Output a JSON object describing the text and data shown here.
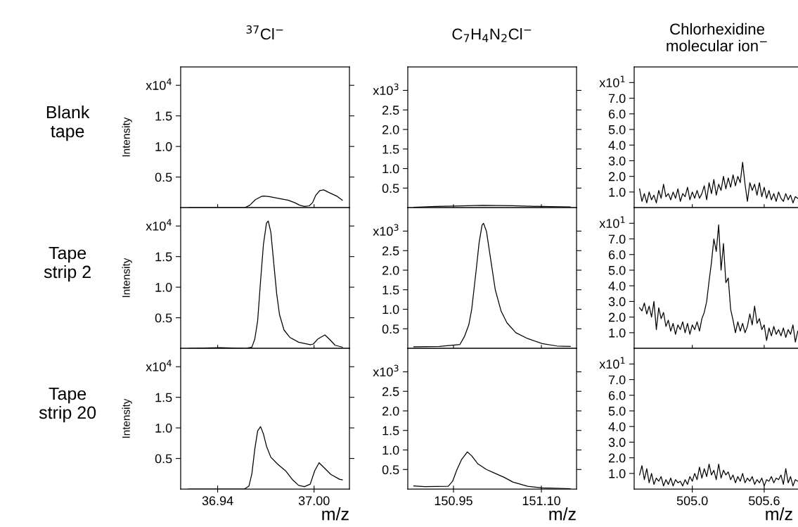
{
  "chart_data": [
    {
      "type": "line",
      "title": "$^{37}$Cl$^{−}$",
      "ylabel": "Intensity",
      "annotations": [
        "Blank\ntape"
      ],
      "tick_labels": "y",
      "x": [
        36.9218,
        36.95,
        36.957,
        36.96,
        36.9635,
        36.967,
        36.9685,
        36.972,
        36.976,
        36.98,
        36.984,
        36.988,
        36.991,
        36.994,
        36.997,
        36.999,
        37.001,
        37.0036,
        37.006,
        37.009,
        37.014,
        37.0176
      ],
      "series": [
        {
          "color": "#000000",
          "values": [
            0,
            0,
            0,
            0.04,
            0.13,
            0.18,
            0.19,
            0.18,
            0.16,
            0.14,
            0.12,
            0.08,
            0.04,
            0.02,
            0.03,
            0.08,
            0.2,
            0.28,
            0.29,
            0.25,
            0.19,
            0.12
          ]
        }
      ],
      "xlim": [
        36.917,
        37.022
      ],
      "ylim": [
        0,
        2.3
      ],
      "xticks": [
        {
          "value": 36.94,
          "label": null
        },
        {
          "value": 37.0,
          "label": null
        }
      ],
      "yticks": [
        0.5,
        {
          "value": 1,
          "label": "1.0"
        },
        1.5,
        {
          "value": 2,
          "label": "x10$^{4}$"
        }
      ]
    },
    {
      "type": "line",
      "title": "C$_{7}$H$_{4}$N$_{2}$Cl$^{−}$",
      "tick_labels": "y",
      "x": [
        150.8822,
        150.92,
        150.95,
        151.0,
        151.05,
        151.1,
        151.1493
      ],
      "series": [
        {
          "color": "#000000",
          "values": [
            0.01,
            0.03,
            0.04,
            0.06,
            0.05,
            0.03,
            0.02
          ]
        }
      ],
      "xlim": [
        150.872,
        151.16
      ],
      "ylim": [
        0,
        3.6
      ],
      "xticks": [
        {
          "value": 150.95,
          "label": null
        },
        {
          "value": 151.1,
          "label": null
        }
      ],
      "yticks": [
        0.5,
        {
          "value": 1,
          "label": "1.0"
        },
        1.5,
        {
          "value": 2,
          "label": "2.0"
        },
        2.5,
        {
          "value": 3,
          "label": "x10$^{3}$"
        }
      ]
    },
    {
      "type": "line",
      "title": "Chlorhexidine\nmolecular ion$^{−}$",
      "tick_labels": "y",
      "x": [
        504.56,
        504.58,
        504.6,
        504.62,
        504.64,
        504.66,
        504.68,
        504.7,
        504.72,
        504.74,
        504.76,
        504.78,
        504.8,
        504.82,
        504.84,
        504.86,
        504.88,
        504.9,
        504.92,
        504.94,
        504.96,
        504.98,
        505.0,
        505.02,
        505.04,
        505.06,
        505.08,
        505.1,
        505.12,
        505.14,
        505.16,
        505.18,
        505.2,
        505.22,
        505.24,
        505.26,
        505.28,
        505.3,
        505.32,
        505.34,
        505.36,
        505.38,
        505.4,
        505.42,
        505.44,
        505.46,
        505.48,
        505.5,
        505.52,
        505.54,
        505.56,
        505.58,
        505.6,
        505.62,
        505.64,
        505.66,
        505.68,
        505.7,
        505.72,
        505.74,
        505.76,
        505.78,
        505.8,
        505.82,
        505.84,
        505.86,
        505.88
      ],
      "series": [
        {
          "color": "#000000",
          "values": [
            1.2,
            0.4,
            0.9,
            0.3,
            1.0,
            0.5,
            0.8,
            0.3,
            1.1,
            0.6,
            1.5,
            0.7,
            0.9,
            0.5,
            1.0,
            0.6,
            1.2,
            0.4,
            0.9,
            0.7,
            1.3,
            0.5,
            1.0,
            0.6,
            1.1,
            0.6,
            0.9,
            1.4,
            0.5,
            1.6,
            0.9,
            1.8,
            0.8,
            1.5,
            1.1,
            2.0,
            1.2,
            1.9,
            1.3,
            2.1,
            1.4,
            2.0,
            1.6,
            2.9,
            1.5,
            0.4,
            1.6,
            1.1,
            1.5,
            0.8,
            1.6,
            0.7,
            1.3,
            0.6,
            1.1,
            0.5,
            0.9,
            0.4,
            1.0,
            0.6,
            0.4,
            0.9,
            0.5,
            0.8,
            0.3,
            0.7,
            0.6
          ]
        }
      ],
      "xlim": [
        504.515,
        505.9
      ],
      "ylim": [
        0,
        9
      ],
      "xticks": [
        {
          "value": 505,
          "label": null
        },
        {
          "value": 505.6,
          "label": null
        }
      ],
      "yticks": [
        {
          "value": 1,
          "label": "1.0"
        },
        {
          "value": 2,
          "label": "2.0"
        },
        {
          "value": 3,
          "label": "3.0"
        },
        {
          "value": 4,
          "label": "4.0"
        },
        {
          "value": 5,
          "label": "5.0"
        },
        {
          "value": 6,
          "label": "6.0"
        },
        {
          "value": 7,
          "label": "7.0"
        },
        {
          "value": 8,
          "label": "x10$^{1}$"
        }
      ]
    },
    {
      "type": "line",
      "ylabel": "Intensity",
      "annotations": [
        "Tape\nstrip 2"
      ],
      "tick_labels": "y",
      "x": [
        36.9218,
        36.9413,
        36.9576,
        36.9613,
        36.9631,
        36.9649,
        36.9667,
        36.9685,
        36.9704,
        36.9715,
        36.9731,
        36.9749,
        36.9767,
        36.9785,
        36.9813,
        36.9849,
        36.9904,
        36.9976,
        36.9995,
        37.0022,
        37.0067,
        37.0095,
        37.0131,
        37.0176
      ],
      "series": [
        {
          "color": "#000000",
          "values": [
            0,
            0.01,
            0,
            0.02,
            0.15,
            0.45,
            1.1,
            1.7,
            2.05,
            2.08,
            1.9,
            1.4,
            0.9,
            0.55,
            0.3,
            0.18,
            0.1,
            0.06,
            0.07,
            0.15,
            0.22,
            0.15,
            0.05,
            0.02
          ]
        }
      ],
      "xlim": [
        36.917,
        37.022
      ],
      "ylim": [
        0,
        2.3
      ],
      "xticks": [
        {
          "value": 36.94,
          "label": null
        },
        {
          "value": 37.0,
          "label": null
        }
      ],
      "yticks": [
        0.5,
        {
          "value": 1,
          "label": "1.0"
        },
        1.5,
        {
          "value": 2,
          "label": "x10$^{4}$"
        }
      ]
    },
    {
      "type": "line",
      "tick_labels": "y",
      "x": [
        150.8822,
        150.9259,
        150.961,
        150.9686,
        150.9761,
        150.9811,
        150.9887,
        150.9937,
        150.9987,
        151.0012,
        151.0062,
        151.0112,
        151.0213,
        151.0313,
        151.0414,
        151.0564,
        151.0765,
        151.1016,
        151.1267,
        151.1493
      ],
      "series": [
        {
          "color": "#000000",
          "values": [
            0.04,
            0.05,
            0.1,
            0.3,
            0.6,
            1.0,
            2.0,
            2.7,
            3.15,
            3.2,
            3.0,
            2.5,
            1.5,
            0.95,
            0.65,
            0.4,
            0.25,
            0.12,
            0.06,
            0.05
          ]
        }
      ],
      "xlim": [
        150.872,
        151.16
      ],
      "ylim": [
        0,
        3.6
      ],
      "xticks": [
        {
          "value": 150.95,
          "label": null
        },
        {
          "value": 151.1,
          "label": null
        }
      ],
      "yticks": [
        0.5,
        {
          "value": 1,
          "label": "1.0"
        },
        1.5,
        {
          "value": 2,
          "label": "2.0"
        },
        2.5,
        {
          "value": 3,
          "label": "x10$^{3}$"
        }
      ]
    },
    {
      "type": "line",
      "tick_labels": "y",
      "x": [
        504.56,
        504.58,
        504.6,
        504.62,
        504.64,
        504.66,
        504.68,
        504.7,
        504.72,
        504.74,
        504.76,
        504.78,
        504.8,
        504.82,
        504.84,
        504.86,
        504.88,
        504.9,
        504.92,
        504.94,
        504.96,
        504.98,
        505.0,
        505.02,
        505.04,
        505.06,
        505.08,
        505.1,
        505.12,
        505.14,
        505.16,
        505.18,
        505.2,
        505.22,
        505.24,
        505.26,
        505.28,
        505.3,
        505.32,
        505.34,
        505.36,
        505.38,
        505.4,
        505.42,
        505.44,
        505.46,
        505.48,
        505.5,
        505.52,
        505.54,
        505.56,
        505.58,
        505.6,
        505.62,
        505.64,
        505.66,
        505.68,
        505.7,
        505.72,
        505.74,
        505.76,
        505.78,
        505.8,
        505.82,
        505.84,
        505.86,
        505.88
      ],
      "series": [
        {
          "color": "#000000",
          "values": [
            2.6,
            2.4,
            2.9,
            2.2,
            2.7,
            2.0,
            3.0,
            1.2,
            2.6,
            1.9,
            2.3,
            1.4,
            1.8,
            1.1,
            1.6,
            0.9,
            1.5,
            1.2,
            1.7,
            1.0,
            1.6,
            0.9,
            1.5,
            1.2,
            1.7,
            1.1,
            1.9,
            2.3,
            3.0,
            4.3,
            5.5,
            7.0,
            6.2,
            7.9,
            5.0,
            6.7,
            4.2,
            4.5,
            2.5,
            1.8,
            1.0,
            1.7,
            1.1,
            1.6,
            1.0,
            1.4,
            2.2,
            1.5,
            2.7,
            1.6,
            1.9,
            1.2,
            1.5,
            0.5,
            1.3,
            0.8,
            1.4,
            0.9,
            1.2,
            0.8,
            1.3,
            0.7,
            1.2,
            0.9,
            1.5,
            0.4,
            1.1
          ]
        }
      ],
      "xlim": [
        504.515,
        505.9
      ],
      "ylim": [
        0,
        9
      ],
      "xticks": [
        {
          "value": 505,
          "label": null
        },
        {
          "value": 505.6,
          "label": null
        }
      ],
      "yticks": [
        {
          "value": 1,
          "label": "1.0"
        },
        {
          "value": 2,
          "label": "2.0"
        },
        {
          "value": 3,
          "label": "3.0"
        },
        {
          "value": 4,
          "label": "4.0"
        },
        {
          "value": 5,
          "label": "5.0"
        },
        {
          "value": 6,
          "label": "6.0"
        },
        {
          "value": 7,
          "label": "7.0"
        },
        {
          "value": 8,
          "label": "x10$^{1}$"
        }
      ]
    },
    {
      "type": "line",
      "ylabel": "Intensity",
      "xlabel": "m/z",
      "annotations": [
        "Tape\nstrip 20"
      ],
      "x": [
        36.9218,
        36.9567,
        36.9595,
        36.9613,
        36.9631,
        36.9649,
        36.9667,
        36.9685,
        36.9704,
        36.9731,
        36.9776,
        36.9822,
        36.9867,
        36.9904,
        36.994,
        36.9976,
        37.0004,
        37.0031,
        37.0058,
        37.0104,
        37.0158,
        37.0176
      ],
      "series": [
        {
          "color": "#000000",
          "values": [
            0,
            0,
            0.05,
            0.25,
            0.65,
            0.95,
            1.02,
            0.9,
            0.7,
            0.52,
            0.4,
            0.3,
            0.15,
            0.06,
            0.04,
            0.08,
            0.3,
            0.43,
            0.36,
            0.24,
            0.16,
            0.15
          ]
        }
      ],
      "xlim": [
        36.917,
        37.022
      ],
      "ylim": [
        0,
        2.3
      ],
      "xticks": [
        36.94,
        {
          "value": 37.0,
          "label": "37.00"
        }
      ],
      "yticks": [
        0.5,
        {
          "value": 1,
          "label": "1.0"
        },
        1.5,
        {
          "value": 2,
          "label": "x10$^{4}$"
        }
      ]
    },
    {
      "type": "line",
      "xlabel": "m/z",
      "x": [
        150.8822,
        150.9008,
        150.941,
        150.9485,
        150.956,
        150.9636,
        150.9736,
        150.9811,
        150.9912,
        151.0062,
        151.0213,
        151.0363,
        151.0514,
        151.0765,
        151.1016,
        151.1493
      ],
      "series": [
        {
          "color": "#000000",
          "values": [
            0.08,
            0.06,
            0.07,
            0.2,
            0.5,
            0.75,
            0.95,
            0.85,
            0.65,
            0.5,
            0.4,
            0.3,
            0.18,
            0.07,
            0.03,
            0.01
          ]
        }
      ],
      "xlim": [
        150.872,
        151.16
      ],
      "ylim": [
        0,
        3.6
      ],
      "xticks": [
        150.95,
        {
          "value": 151.1,
          "label": "151.10"
        }
      ],
      "yticks": [
        0.5,
        {
          "value": 1,
          "label": "1.0"
        },
        1.5,
        {
          "value": 2,
          "label": "2.0"
        },
        2.5,
        {
          "value": 3,
          "label": "x10$^{3}$"
        }
      ]
    },
    {
      "type": "line",
      "xlabel": "m/z",
      "x": [
        504.56,
        504.58,
        504.6,
        504.62,
        504.64,
        504.66,
        504.68,
        504.7,
        504.72,
        504.74,
        504.76,
        504.78,
        504.8,
        504.82,
        504.84,
        504.86,
        504.88,
        504.9,
        504.92,
        504.94,
        504.96,
        504.98,
        505.0,
        505.02,
        505.04,
        505.06,
        505.08,
        505.1,
        505.12,
        505.14,
        505.16,
        505.18,
        505.2,
        505.22,
        505.24,
        505.26,
        505.28,
        505.3,
        505.32,
        505.34,
        505.36,
        505.38,
        505.4,
        505.42,
        505.44,
        505.46,
        505.48,
        505.5,
        505.52,
        505.54,
        505.56,
        505.58,
        505.6,
        505.62,
        505.64,
        505.66,
        505.68,
        505.7,
        505.72,
        505.74,
        505.76,
        505.78,
        505.8,
        505.82,
        505.84,
        505.86,
        505.88
      ],
      "series": [
        {
          "color": "#000000",
          "values": [
            0.9,
            1.5,
            0.6,
            1.3,
            0.4,
            1.0,
            0.3,
            0.7,
            0.5,
            0.8,
            0.2,
            0.6,
            0.3,
            0.7,
            0.2,
            0.6,
            0.4,
            0.5,
            0.2,
            0.6,
            0.3,
            0.8,
            0.5,
            1.0,
            0.6,
            1.4,
            0.7,
            1.3,
            0.8,
            1.6,
            0.9,
            1.2,
            0.6,
            1.6,
            0.7,
            1.2,
            0.9,
            1.1,
            0.6,
            0.9,
            0.4,
            0.8,
            0.5,
            1.0,
            0.4,
            0.7,
            0.5,
            0.8,
            0.3,
            0.6,
            0.4,
            0.7,
            0.2,
            0.6,
            0.5,
            0.8,
            0.4,
            0.7,
            0.6,
            0.9,
            0.3,
            1.3,
            0.4,
            0.8,
            0.2,
            0.6,
            0.5
          ]
        }
      ],
      "xlim": [
        504.515,
        505.9
      ],
      "ylim": [
        0,
        9
      ],
      "xticks": [
        {
          "value": 505,
          "label": "505.0"
        },
        505.6
      ],
      "yticks": [
        {
          "value": 1,
          "label": "1.0"
        },
        {
          "value": 2,
          "label": "2.0"
        },
        {
          "value": 3,
          "label": "3.0"
        },
        {
          "value": 4,
          "label": "4.0"
        },
        {
          "value": 5,
          "label": "5.0"
        },
        {
          "value": 6,
          "label": "6.0"
        },
        {
          "value": 7,
          "label": "7.0"
        },
        {
          "value": 8,
          "label": "x10$^{1}$"
        }
      ]
    }
  ]
}
